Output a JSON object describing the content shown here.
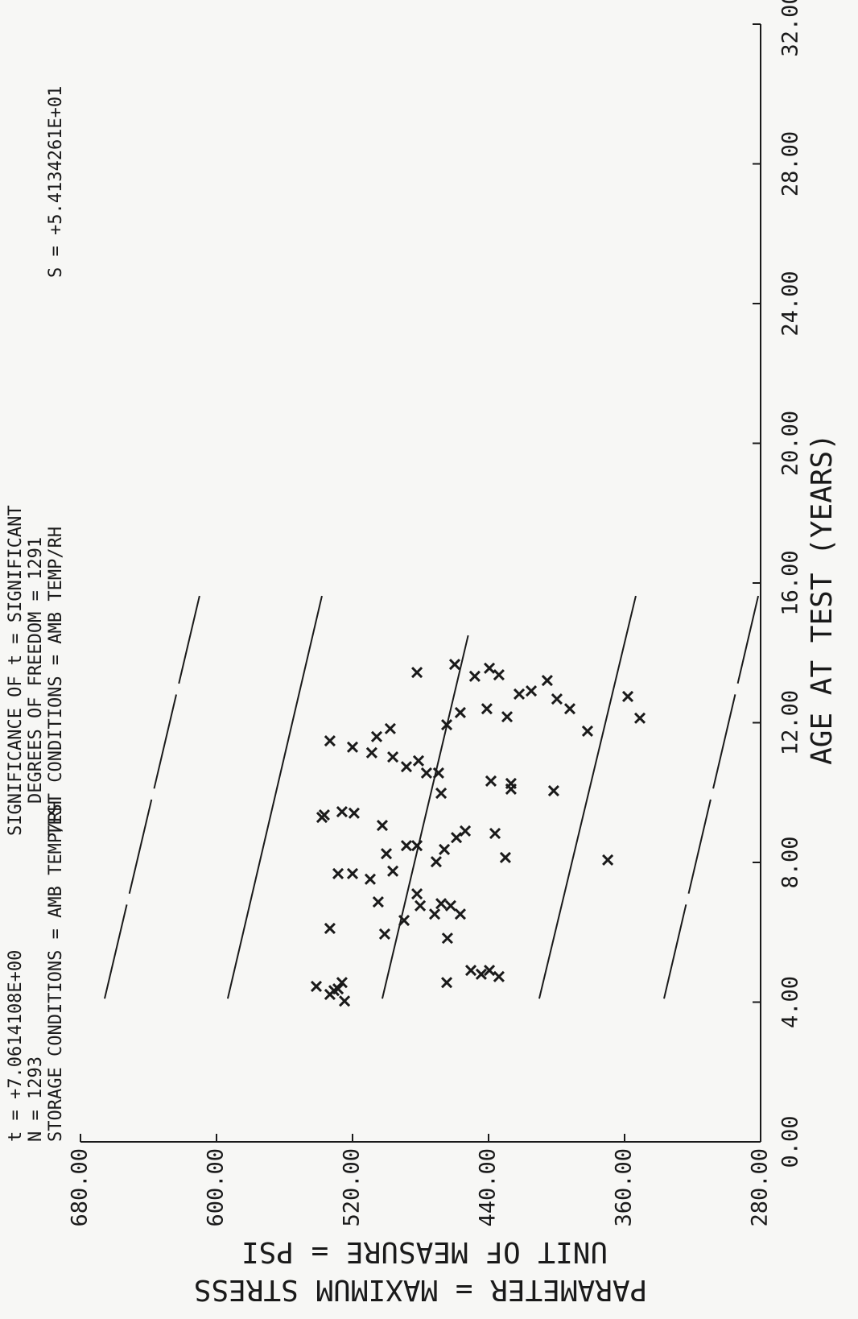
{
  "chart_data": {
    "type": "scatter",
    "annotations": [
      "t = +7.0614108E+00",
      "N = 1293",
      "STORAGE CONDITIONS = AMB TEMP/RH",
      "SIGNIFICANCE OF t = SIGNIFICANT",
      "DEGREES OF FREEDOM = 1291",
      "TEST CONDITIONS = AMB TEMP/RH",
      "S = +5.4134261E+01"
    ],
    "x_label": "AGE AT TEST (YEARS)",
    "y_label": "PARAMETER = MAXIMUM STRESS",
    "y_unit_label": "UNIT OF MEASURE = PSI",
    "xlim": [
      0,
      32
    ],
    "ylim": [
      280,
      680
    ],
    "xticks": [
      {
        "value": 0,
        "label": "0.00"
      },
      {
        "value": 4,
        "label": "4.00"
      },
      {
        "value": 8,
        "label": "8.00"
      },
      {
        "value": 12,
        "label": "12.00"
      },
      {
        "value": 16,
        "label": "16.00"
      },
      {
        "value": 20,
        "label": "20.00"
      },
      {
        "value": 24,
        "label": "24.00"
      },
      {
        "value": 28,
        "label": "28.00"
      },
      {
        "value": 32,
        "label": "32.00"
      }
    ],
    "yticks": [
      {
        "value": 280,
        "label": "280.00"
      },
      {
        "value": 360,
        "label": "360.00"
      },
      {
        "value": 440,
        "label": "440.00"
      },
      {
        "value": 520,
        "label": "520.00"
      },
      {
        "value": 600,
        "label": "600.00"
      },
      {
        "value": 680,
        "label": "680.00"
      }
    ],
    "color": "#1a1a1a",
    "x": [
      4.45,
      4.22,
      4.38,
      4.03,
      4.33,
      4.56,
      4.56,
      4.91,
      4.8,
      4.91,
      4.73,
      6.11,
      7.68,
      7.68,
      7.52,
      6.87,
      5.95,
      8.25,
      7.75,
      6.34,
      7.1,
      6.76,
      6.52,
      6.82,
      5.83,
      6.76,
      6.52,
      8.48,
      8.48,
      8.02,
      8.37,
      8.71,
      8.9,
      8.83,
      8.14,
      9.29,
      9.45,
      9.41,
      9.06,
      9.98,
      10.1,
      8.07,
      11.48,
      11.3,
      11.6,
      11.83,
      11.02,
      10.74,
      10.91,
      10.56,
      10.33,
      10.26,
      10.05,
      13.44,
      11.94,
      13.67,
      12.29,
      13.33,
      12.4,
      13.56,
      12.17,
      12.82,
      12.91,
      13.21,
      12.68,
      12.4,
      11.76,
      12.75,
      12.13,
      13.37,
      9.36,
      11.14,
      10.56
    ],
    "values": [
      541.3,
      533.3,
      528.5,
      524.7,
      530.9,
      526.2,
      464.6,
      450.4,
      444.3,
      439.5,
      433.9,
      533.3,
      528.5,
      520.0,
      509.6,
      504.9,
      501.1,
      500.1,
      496.3,
      489.7,
      482.1,
      480.2,
      471.7,
      467.9,
      464.2,
      462.3,
      456.6,
      488.3,
      482.1,
      470.8,
      466.0,
      458.9,
      453.7,
      436.2,
      430.1,
      538.0,
      526.2,
      519.1,
      502.5,
      467.9,
      426.8,
      369.9,
      533.3,
      520.0,
      505.8,
      497.8,
      496.3,
      488.3,
      481.2,
      469.4,
      438.6,
      426.8,
      401.7,
      482.1,
      464.6,
      459.9,
      456.6,
      448.1,
      441.0,
      439.5,
      429.1,
      422.0,
      414.9,
      405.5,
      399.8,
      392.2,
      381.8,
      358.1,
      351.0,
      433.9,
      536.6,
      508.7,
      476.5
    ],
    "lines": [
      {
        "style": "dashed",
        "x": [
          4.1,
          15.63
        ],
        "values": [
          665.8,
          610.0
        ]
      },
      {
        "style": "solid",
        "x": [
          4.1,
          15.63
        ],
        "values": [
          593.4,
          538.0
        ]
      },
      {
        "style": "solid",
        "x": [
          4.1,
          14.5
        ],
        "values": [
          502.5,
          452.0
        ]
      },
      {
        "style": "solid",
        "x": [
          4.1,
          15.63
        ],
        "values": [
          410.2,
          353.4
        ]
      },
      {
        "style": "dashed",
        "x": [
          4.1,
          15.63
        ],
        "values": [
          336.8,
          281.4
        ]
      }
    ]
  }
}
